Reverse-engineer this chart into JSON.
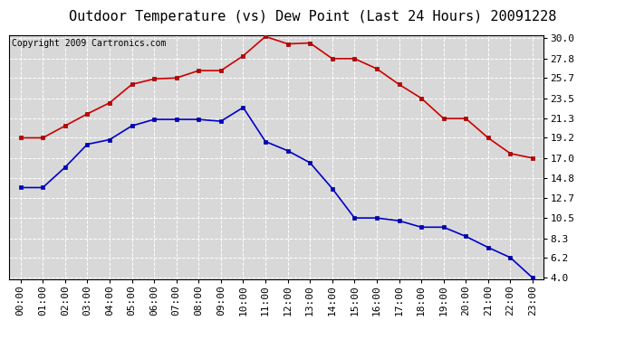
{
  "title": "Outdoor Temperature (vs) Dew Point (Last 24 Hours) 20091228",
  "copyright": "Copyright 2009 Cartronics.com",
  "hours": [
    "00:00",
    "01:00",
    "02:00",
    "03:00",
    "04:00",
    "05:00",
    "06:00",
    "07:00",
    "08:00",
    "09:00",
    "10:00",
    "11:00",
    "12:00",
    "13:00",
    "14:00",
    "15:00",
    "16:00",
    "17:00",
    "18:00",
    "19:00",
    "20:00",
    "21:00",
    "22:00",
    "23:00"
  ],
  "temp": [
    19.2,
    19.2,
    20.5,
    21.8,
    23.0,
    25.0,
    25.6,
    25.7,
    26.5,
    26.5,
    28.1,
    30.2,
    29.4,
    29.5,
    27.8,
    27.8,
    26.7,
    25.0,
    23.5,
    21.3,
    21.3,
    19.2,
    17.5,
    17.0
  ],
  "dew": [
    13.8,
    13.8,
    16.0,
    18.5,
    19.0,
    20.5,
    21.2,
    21.2,
    21.2,
    21.0,
    22.5,
    18.8,
    17.8,
    16.5,
    13.7,
    10.5,
    10.5,
    10.2,
    9.5,
    9.5,
    8.5,
    7.3,
    6.2,
    4.0
  ],
  "temp_color": "#cc0000",
  "dew_color": "#0000cc",
  "bg_color": "#ffffff",
  "plot_bg_color": "#d8d8d8",
  "grid_color": "#ffffff",
  "yticks": [
    4.0,
    6.2,
    8.3,
    10.5,
    12.7,
    14.8,
    17.0,
    19.2,
    21.3,
    23.5,
    25.7,
    27.8,
    30.0
  ],
  "ymin": 4.0,
  "ymax": 30.0,
  "title_fontsize": 11,
  "copyright_fontsize": 7,
  "tick_fontsize": 8,
  "marker": "s",
  "marker_size": 3,
  "line_width": 1.2
}
